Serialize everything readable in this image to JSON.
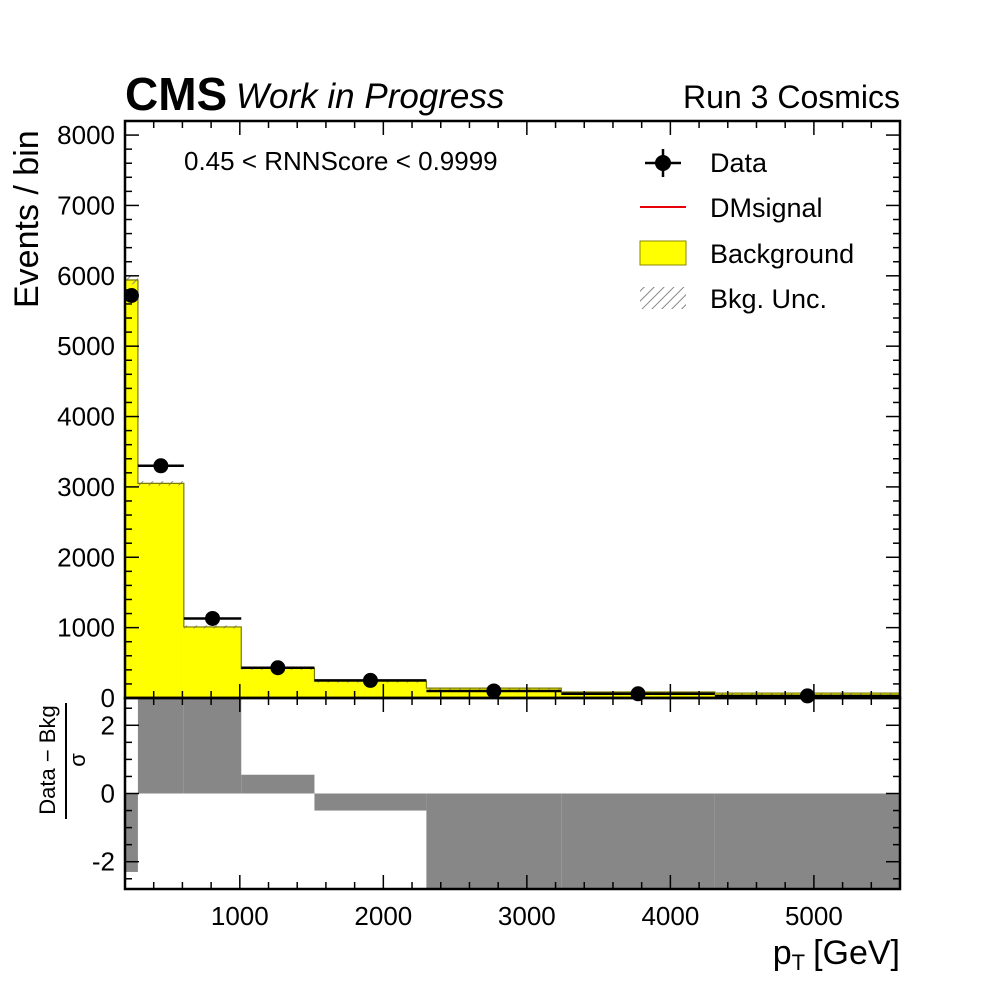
{
  "header": {
    "experiment": "CMS",
    "status": "Work in Progress",
    "run": "Run 3 Cosmics"
  },
  "chart_data": {
    "type": "bar",
    "annotation": "0.45 < RNNScore < 0.9999",
    "xlabel": "p",
    "xlabel_sub": "T",
    "xlabel_unit": "[GeV]",
    "ylabel": "Events / bin",
    "ratio_ylabel_num": "Data − Bkg",
    "ratio_ylabel_den": "σ",
    "xlim": [
      200,
      5600
    ],
    "ylim": [
      0,
      8200
    ],
    "ratio_ylim": [
      -2.8,
      2.8
    ],
    "x_ticks": [
      1000,
      2000,
      3000,
      4000,
      5000
    ],
    "y_ticks": [
      0,
      1000,
      2000,
      3000,
      4000,
      5000,
      6000,
      7000,
      8000
    ],
    "ratio_y_ticks": [
      -2,
      0,
      2
    ],
    "bin_edges": [
      200,
      290,
      610,
      1010,
      1520,
      2300,
      3240,
      4310,
      5600
    ],
    "legend": {
      "placement": "top-right",
      "entries": [
        {
          "label": "Data",
          "kind": "marker"
        },
        {
          "label": "DMsignal",
          "kind": "line"
        },
        {
          "label": "Background",
          "kind": "fill"
        },
        {
          "label": "Bkg. Unc.",
          "kind": "hatch"
        }
      ]
    },
    "series": [
      {
        "name": "Background",
        "color": "#ffff00",
        "values": [
          5940,
          3050,
          1010,
          420,
          240,
          140,
          85,
          70
        ]
      },
      {
        "name": "Bkg. Unc.",
        "color": "#888888",
        "values": [
          60,
          30,
          20,
          10,
          8,
          8,
          6,
          6
        ]
      },
      {
        "name": "Data",
        "color": "#000000",
        "values": [
          5720,
          3300,
          1130,
          430,
          250,
          100,
          60,
          30
        ]
      },
      {
        "name": "DMsignal",
        "color": "#e8000b",
        "values": [
          3,
          3,
          2,
          2,
          1,
          1,
          1,
          1
        ]
      }
    ],
    "ratio_values": [
      -2.3,
      2.9,
      2.9,
      0.55,
      -0.5,
      -2.9,
      -2.9,
      -2.9
    ],
    "ratio_color": "#878787"
  }
}
